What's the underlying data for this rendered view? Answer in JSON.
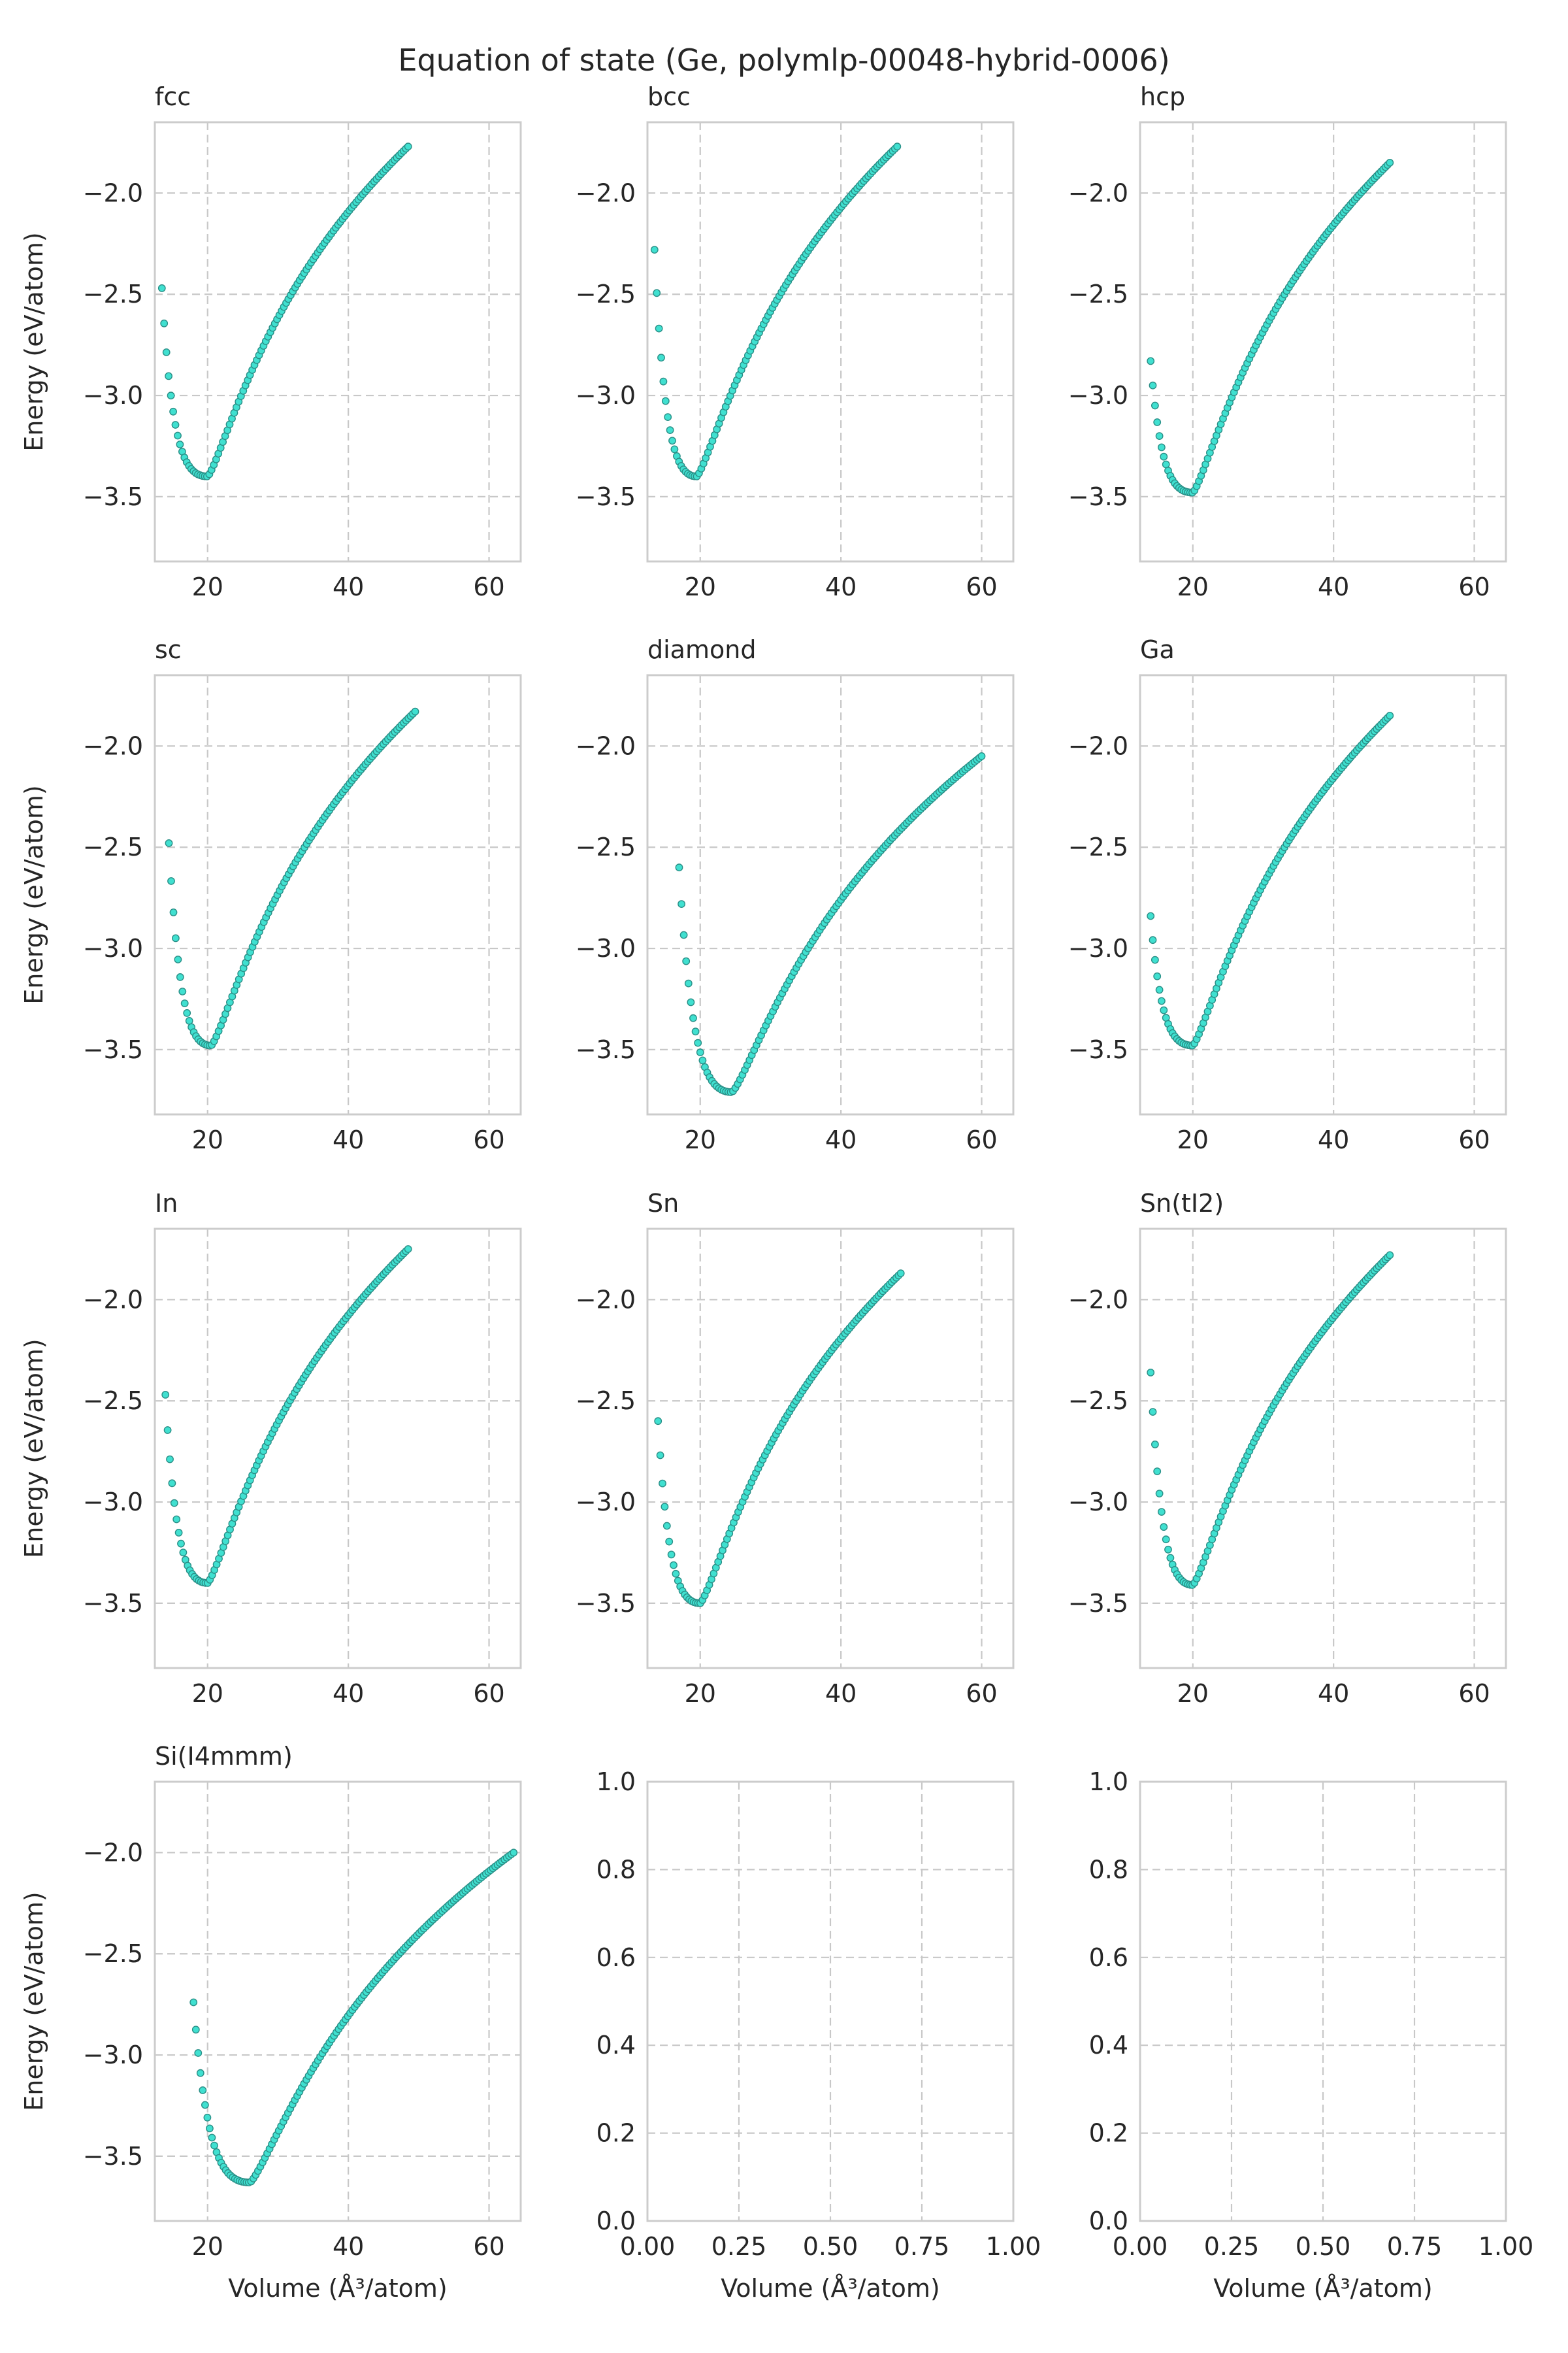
{
  "figure": {
    "suptitle": "Equation of state (Ge, polymlp-00048-hybrid-0006)",
    "point_color": "#40e0d0",
    "point_edge_color": "#2a8f87",
    "grid": true
  },
  "chart_data": [
    {
      "title": "fcc",
      "type": "scatter",
      "xlabel": "",
      "ylabel": "Energy (eV/atom)",
      "xlim": [
        12.5,
        64.5
      ],
      "ylim": [
        -3.82,
        -1.65
      ],
      "xticks": [
        "20",
        "40",
        "60"
      ],
      "yticks": [
        "−2.0",
        "−2.5",
        "−3.0",
        "−3.5"
      ],
      "v_start": 13.5,
      "v_end": 48.5,
      "n_points": 110,
      "v0": 20.0,
      "e0": -3.4,
      "e_start": -2.47,
      "e_end": -1.77
    },
    {
      "title": "bcc",
      "type": "scatter",
      "xlabel": "",
      "ylabel": "",
      "xlim": [
        12.5,
        64.5
      ],
      "ylim": [
        -3.82,
        -1.65
      ],
      "xticks": [
        "20",
        "40",
        "60"
      ],
      "yticks": [
        "−2.0",
        "−2.5",
        "−3.0",
        "−3.5"
      ],
      "v_start": 13.5,
      "v_end": 48.0,
      "n_points": 110,
      "v0": 19.5,
      "e0": -3.4,
      "e_start": -2.28,
      "e_end": -1.77
    },
    {
      "title": "hcp",
      "type": "scatter",
      "xlabel": "",
      "ylabel": "",
      "xlim": [
        12.5,
        64.5
      ],
      "ylim": [
        -3.82,
        -1.65
      ],
      "xticks": [
        "20",
        "40",
        "60"
      ],
      "yticks": [
        "−2.0",
        "−2.5",
        "−3.0",
        "−3.5"
      ],
      "v_start": 14.0,
      "v_end": 48.0,
      "n_points": 110,
      "v0": 20.0,
      "e0": -3.48,
      "e_start": -2.83,
      "e_end": -1.85
    },
    {
      "title": "sc",
      "type": "scatter",
      "xlabel": "",
      "ylabel": "Energy (eV/atom)",
      "xlim": [
        12.5,
        64.5
      ],
      "ylim": [
        -3.82,
        -1.65
      ],
      "xticks": [
        "20",
        "40",
        "60"
      ],
      "yticks": [
        "−2.0",
        "−2.5",
        "−3.0",
        "−3.5"
      ],
      "v_start": 14.5,
      "v_end": 49.5,
      "n_points": 110,
      "v0": 20.5,
      "e0": -3.48,
      "e_start": -2.48,
      "e_end": -1.83
    },
    {
      "title": "diamond",
      "type": "scatter",
      "xlabel": "",
      "ylabel": "",
      "xlim": [
        12.5,
        64.5
      ],
      "ylim": [
        -3.82,
        -1.65
      ],
      "xticks": [
        "20",
        "40",
        "60"
      ],
      "yticks": [
        "−2.0",
        "−2.5",
        "−3.0",
        "−3.5"
      ],
      "v_start": 17.0,
      "v_end": 60.0,
      "n_points": 130,
      "v0": 24.5,
      "e0": -3.71,
      "e_start": -2.6,
      "e_end": -2.05
    },
    {
      "title": "Ga",
      "type": "scatter",
      "xlabel": "",
      "ylabel": "",
      "xlim": [
        12.5,
        64.5
      ],
      "ylim": [
        -3.82,
        -1.65
      ],
      "xticks": [
        "20",
        "40",
        "60"
      ],
      "yticks": [
        "−2.0",
        "−2.5",
        "−3.0",
        "−3.5"
      ],
      "v_start": 14.0,
      "v_end": 48.0,
      "n_points": 110,
      "v0": 20.0,
      "e0": -3.48,
      "e_start": -2.84,
      "e_end": -1.85
    },
    {
      "title": "In",
      "type": "scatter",
      "xlabel": "",
      "ylabel": "Energy (eV/atom)",
      "xlim": [
        12.5,
        64.5
      ],
      "ylim": [
        -3.82,
        -1.65
      ],
      "xticks": [
        "20",
        "40",
        "60"
      ],
      "yticks": [
        "−2.0",
        "−2.5",
        "−3.0",
        "−3.5"
      ],
      "v_start": 14.0,
      "v_end": 48.5,
      "n_points": 110,
      "v0": 20.0,
      "e0": -3.4,
      "e_start": -2.47,
      "e_end": -1.75
    },
    {
      "title": "Sn",
      "type": "scatter",
      "xlabel": "",
      "ylabel": "",
      "xlim": [
        12.5,
        64.5
      ],
      "ylim": [
        -3.82,
        -1.65
      ],
      "xticks": [
        "20",
        "40",
        "60"
      ],
      "yticks": [
        "−2.0",
        "−2.5",
        "−3.0",
        "−3.5"
      ],
      "v_start": 14.0,
      "v_end": 48.5,
      "n_points": 110,
      "v0": 20.0,
      "e0": -3.5,
      "e_start": -2.6,
      "e_end": -1.87
    },
    {
      "title": "Sn(tI2)",
      "type": "scatter",
      "xlabel": "",
      "ylabel": "",
      "xlim": [
        12.5,
        64.5
      ],
      "ylim": [
        -3.82,
        -1.65
      ],
      "xticks": [
        "20",
        "40",
        "60"
      ],
      "yticks": [
        "−2.0",
        "−2.5",
        "−3.0",
        "−3.5"
      ],
      "v_start": 14.0,
      "v_end": 48.0,
      "n_points": 110,
      "v0": 20.0,
      "e0": -3.41,
      "e_start": -2.36,
      "e_end": -1.78
    },
    {
      "title": "Si(I4mmm)",
      "type": "scatter",
      "xlabel": "Volume (Å³/atom)",
      "ylabel": "Energy (eV/atom)",
      "xlim": [
        12.5,
        64.5
      ],
      "ylim": [
        -3.82,
        -1.65
      ],
      "xticks": [
        "20",
        "40",
        "60"
      ],
      "yticks": [
        "−2.0",
        "−2.5",
        "−3.0",
        "−3.5"
      ],
      "v_start": 18.0,
      "v_end": 63.5,
      "n_points": 140,
      "v0": 26.0,
      "e0": -3.63,
      "e_start": -2.74,
      "e_end": -2.0
    },
    {
      "title": "",
      "type": "scatter",
      "empty": true,
      "xlabel": "Volume (Å³/atom)",
      "ylabel": "",
      "xlim": [
        0,
        1
      ],
      "ylim": [
        0,
        1
      ],
      "xticks": [
        "0.00",
        "0.25",
        "0.50",
        "0.75",
        "1.00"
      ],
      "yticks": [
        "1.0",
        "0.8",
        "0.6",
        "0.4",
        "0.2",
        "0.0"
      ]
    },
    {
      "title": "",
      "type": "scatter",
      "empty": true,
      "xlabel": "Volume (Å³/atom)",
      "ylabel": "",
      "xlim": [
        0,
        1
      ],
      "ylim": [
        0,
        1
      ],
      "xticks": [
        "0.00",
        "0.25",
        "0.50",
        "0.75",
        "1.00"
      ],
      "yticks": [
        "1.0",
        "0.8",
        "0.6",
        "0.4",
        "0.2",
        "0.0"
      ]
    }
  ]
}
